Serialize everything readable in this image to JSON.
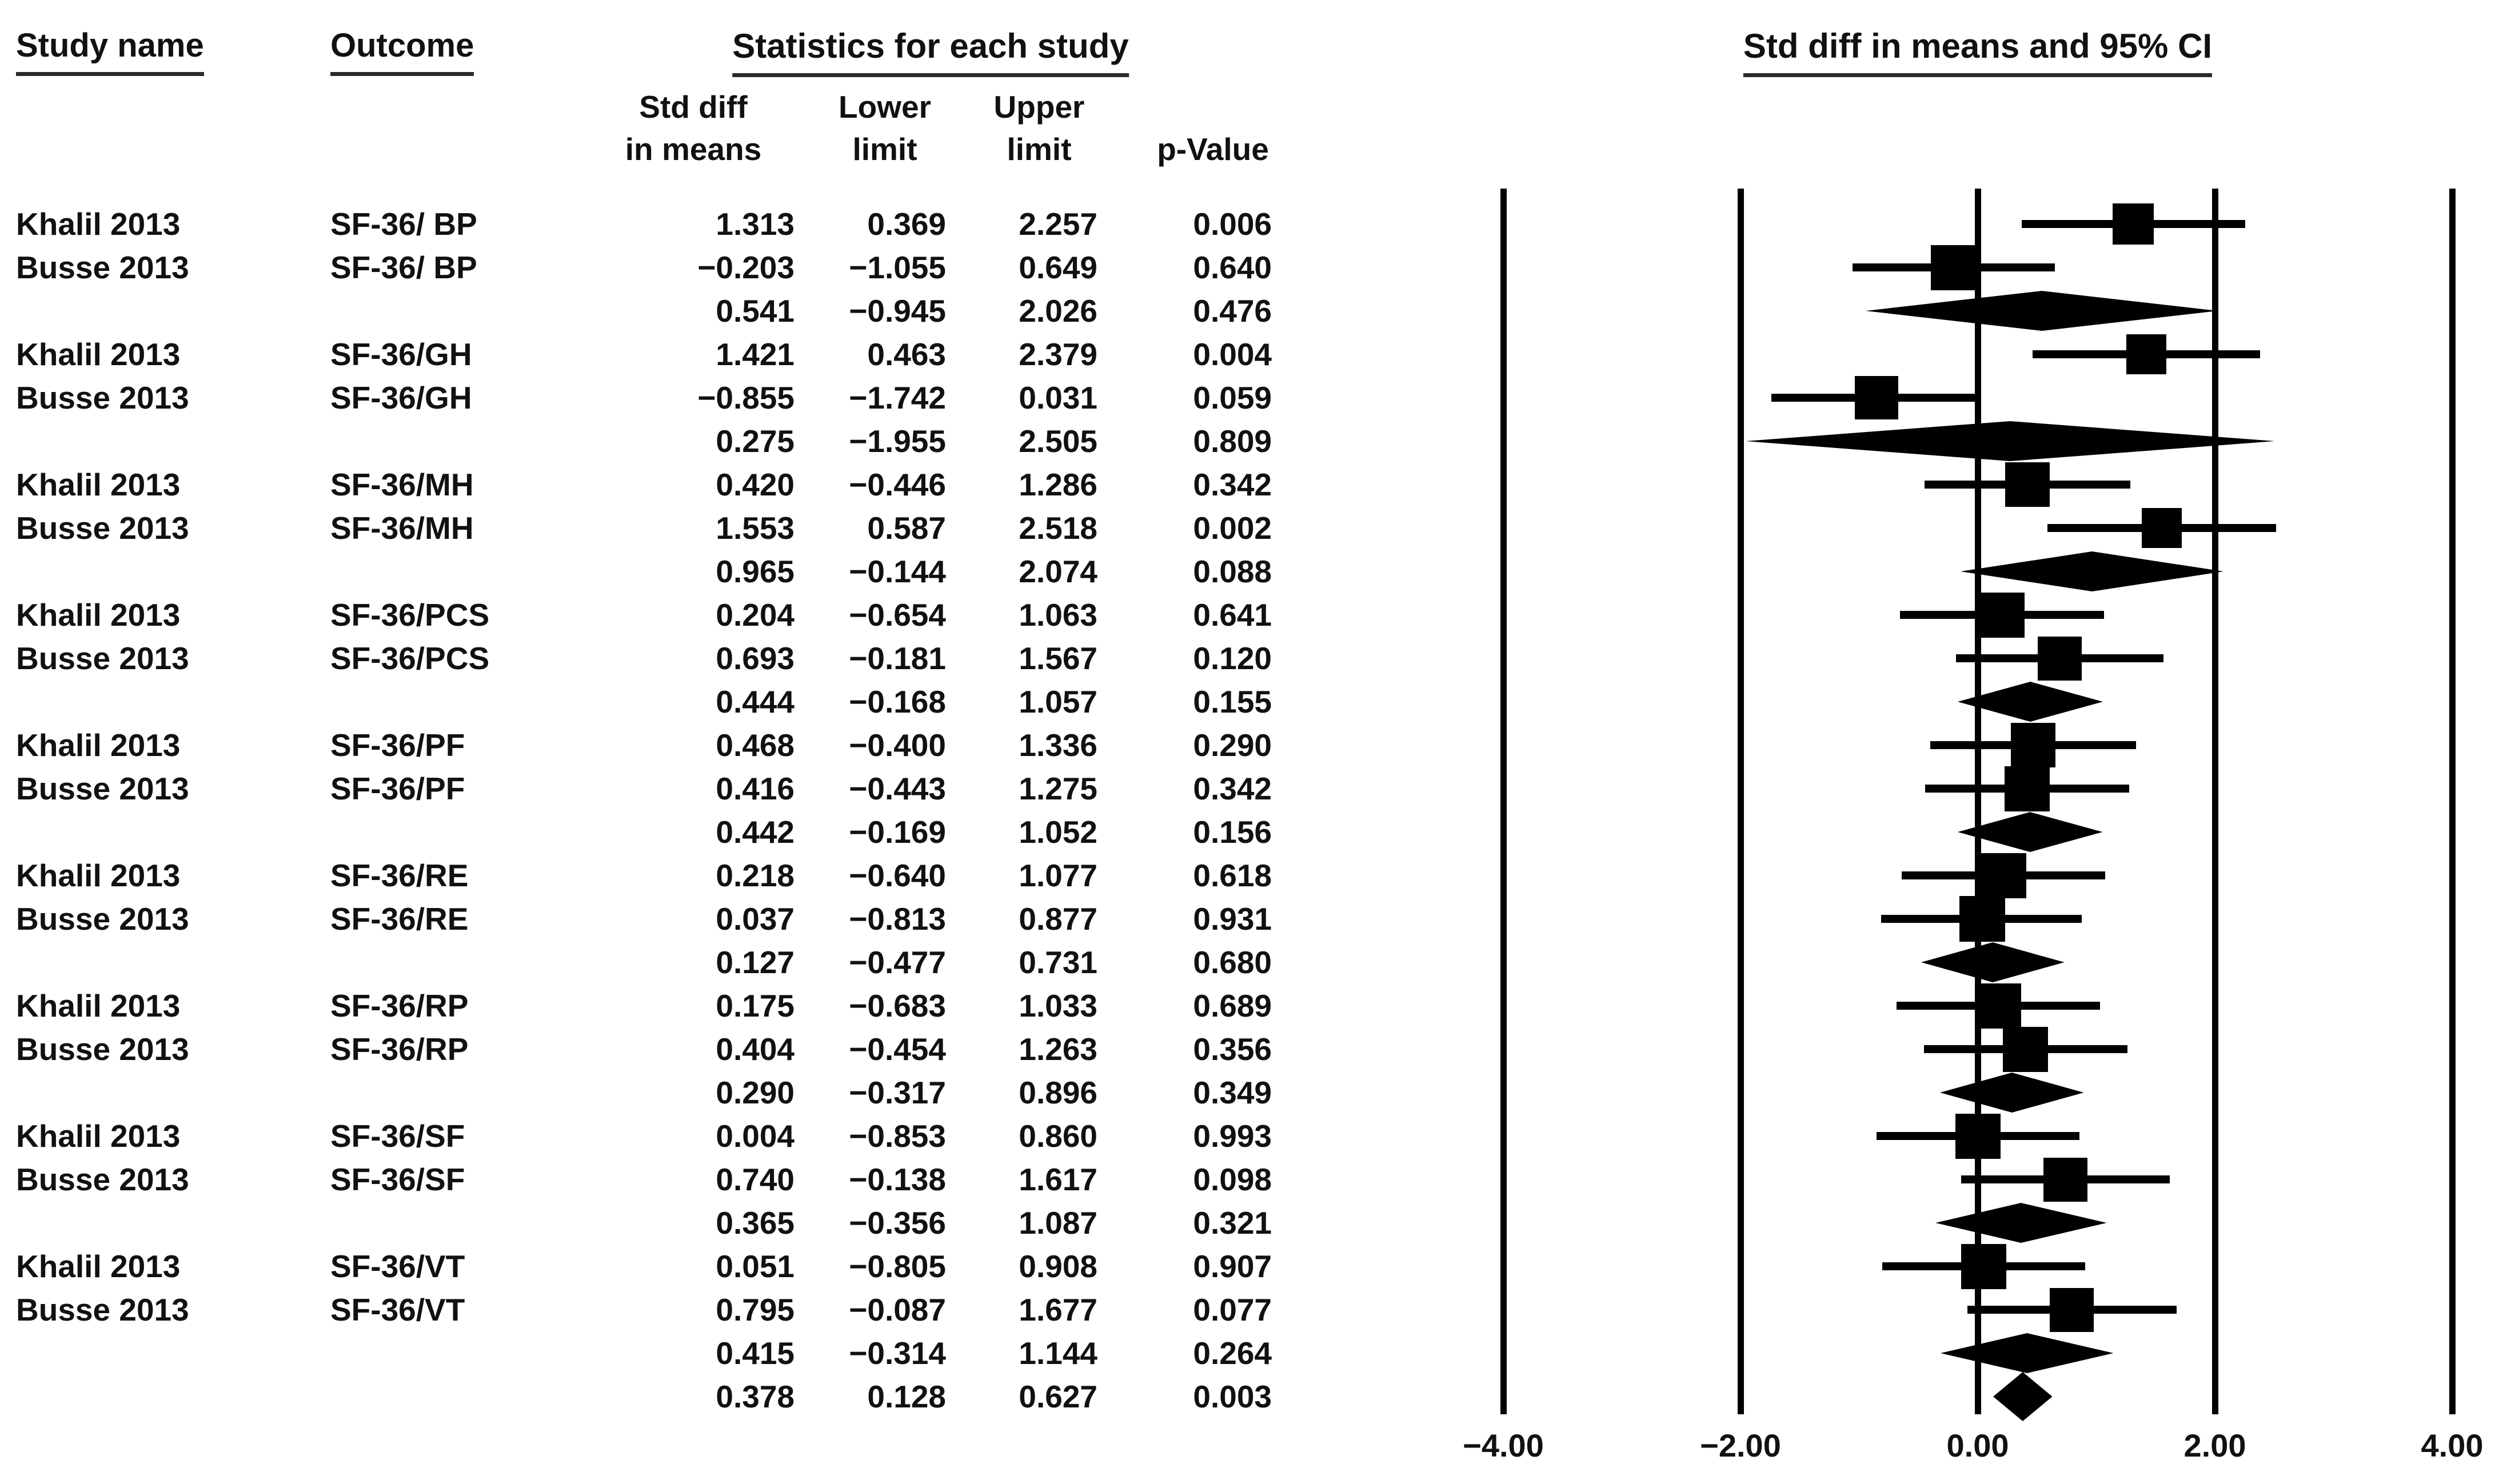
{
  "page": {
    "background": "#ffffff",
    "text_color": "#111111",
    "accent_color": "#000000"
  },
  "headers": {
    "study_name": "Study name",
    "outcome": "Outcome",
    "statistics": "Statistics for each study",
    "plot": "Std diff in means and 95% CI",
    "sub": {
      "sdm_line1": "Std diff",
      "sdm_line2": "in means",
      "lower_line1": "Lower",
      "lower_line2": "limit",
      "upper_line1": "Upper",
      "upper_line2": "limit",
      "p_value": "p-Value"
    }
  },
  "chart_data": {
    "type": "scatter",
    "subtype": "forest-plot-meta-analysis",
    "title": "Std diff in means and 95% CI",
    "left_table_title": "Statistics for each study",
    "columns": [
      "Study name",
      "Outcome",
      "Std diff in means",
      "Lower limit",
      "Upper limit",
      "p-Value"
    ],
    "x_axis": {
      "ticks": [
        -4,
        -2,
        0,
        2,
        4
      ],
      "tick_labels": [
        "−4.00",
        "−2.00",
        "0.00",
        "2.00",
        "4.00"
      ],
      "range": [
        -4.6,
        4.6
      ],
      "gridlines": true,
      "legend_position": "none"
    },
    "marker_styles": {
      "study": "square-with-ci-line",
      "summary": "diamond",
      "overall": "diamond"
    },
    "rows": [
      {
        "kind": "study",
        "study": "Khalil 2013",
        "outcome": "SF-36/ BP",
        "est": 1.313,
        "lower": 0.369,
        "upper": 2.257,
        "p": 0.006
      },
      {
        "kind": "study",
        "study": "Busse 2013",
        "outcome": "SF-36/ BP",
        "est": -0.203,
        "lower": -1.055,
        "upper": 0.649,
        "p": 0.64
      },
      {
        "kind": "summary",
        "study": "",
        "outcome": "",
        "est": 0.541,
        "lower": -0.945,
        "upper": 2.026,
        "p": 0.476
      },
      {
        "kind": "study",
        "study": "Khalil 2013",
        "outcome": "SF-36/GH",
        "est": 1.421,
        "lower": 0.463,
        "upper": 2.379,
        "p": 0.004
      },
      {
        "kind": "study",
        "study": "Busse 2013",
        "outcome": "SF-36/GH",
        "est": -0.855,
        "lower": -1.742,
        "upper": 0.031,
        "p": 0.059
      },
      {
        "kind": "summary",
        "study": "",
        "outcome": "",
        "est": 0.275,
        "lower": -1.955,
        "upper": 2.505,
        "p": 0.809
      },
      {
        "kind": "study",
        "study": "Khalil 2013",
        "outcome": "SF-36/MH",
        "est": 0.42,
        "lower": -0.446,
        "upper": 1.286,
        "p": 0.342
      },
      {
        "kind": "study",
        "study": "Busse 2013",
        "outcome": "SF-36/MH",
        "est": 1.553,
        "lower": 0.587,
        "upper": 2.518,
        "p": 0.002
      },
      {
        "kind": "summary",
        "study": "",
        "outcome": "",
        "est": 0.965,
        "lower": -0.144,
        "upper": 2.074,
        "p": 0.088
      },
      {
        "kind": "study",
        "study": "Khalil 2013",
        "outcome": "SF-36/PCS",
        "est": 0.204,
        "lower": -0.654,
        "upper": 1.063,
        "p": 0.641
      },
      {
        "kind": "study",
        "study": "Busse 2013",
        "outcome": "SF-36/PCS",
        "est": 0.693,
        "lower": -0.181,
        "upper": 1.567,
        "p": 0.12
      },
      {
        "kind": "summary",
        "study": "",
        "outcome": "",
        "est": 0.444,
        "lower": -0.168,
        "upper": 1.057,
        "p": 0.155
      },
      {
        "kind": "study",
        "study": "Khalil 2013",
        "outcome": "SF-36/PF",
        "est": 0.468,
        "lower": -0.4,
        "upper": 1.336,
        "p": 0.29
      },
      {
        "kind": "study",
        "study": "Busse 2013",
        "outcome": "SF-36/PF",
        "est": 0.416,
        "lower": -0.443,
        "upper": 1.275,
        "p": 0.342
      },
      {
        "kind": "summary",
        "study": "",
        "outcome": "",
        "est": 0.442,
        "lower": -0.169,
        "upper": 1.052,
        "p": 0.156
      },
      {
        "kind": "study",
        "study": "Khalil 2013",
        "outcome": "SF-36/RE",
        "est": 0.218,
        "lower": -0.64,
        "upper": 1.077,
        "p": 0.618
      },
      {
        "kind": "study",
        "study": "Busse 2013",
        "outcome": "SF-36/RE",
        "est": 0.037,
        "lower": -0.813,
        "upper": 0.877,
        "p": 0.931
      },
      {
        "kind": "summary",
        "study": "",
        "outcome": "",
        "est": 0.127,
        "lower": -0.477,
        "upper": 0.731,
        "p": 0.68
      },
      {
        "kind": "study",
        "study": "Khalil 2013",
        "outcome": "SF-36/RP",
        "est": 0.175,
        "lower": -0.683,
        "upper": 1.033,
        "p": 0.689
      },
      {
        "kind": "study",
        "study": "Busse 2013",
        "outcome": "SF-36/RP",
        "est": 0.404,
        "lower": -0.454,
        "upper": 1.263,
        "p": 0.356
      },
      {
        "kind": "summary",
        "study": "",
        "outcome": "",
        "est": 0.29,
        "lower": -0.317,
        "upper": 0.896,
        "p": 0.349
      },
      {
        "kind": "study",
        "study": "Khalil 2013",
        "outcome": "SF-36/SF",
        "est": 0.004,
        "lower": -0.853,
        "upper": 0.86,
        "p": 0.993
      },
      {
        "kind": "study",
        "study": "Busse 2013",
        "outcome": "SF-36/SF",
        "est": 0.74,
        "lower": -0.138,
        "upper": 1.617,
        "p": 0.098
      },
      {
        "kind": "summary",
        "study": "",
        "outcome": "",
        "est": 0.365,
        "lower": -0.356,
        "upper": 1.087,
        "p": 0.321
      },
      {
        "kind": "study",
        "study": "Khalil 2013",
        "outcome": "SF-36/VT",
        "est": 0.051,
        "lower": -0.805,
        "upper": 0.908,
        "p": 0.907
      },
      {
        "kind": "study",
        "study": "Busse 2013",
        "outcome": "SF-36/VT",
        "est": 0.795,
        "lower": -0.087,
        "upper": 1.677,
        "p": 0.077
      },
      {
        "kind": "summary",
        "study": "",
        "outcome": "",
        "est": 0.415,
        "lower": -0.314,
        "upper": 1.144,
        "p": 0.264
      },
      {
        "kind": "overall",
        "study": "",
        "outcome": "",
        "est": 0.378,
        "lower": 0.128,
        "upper": 0.627,
        "p": 0.003
      }
    ]
  }
}
